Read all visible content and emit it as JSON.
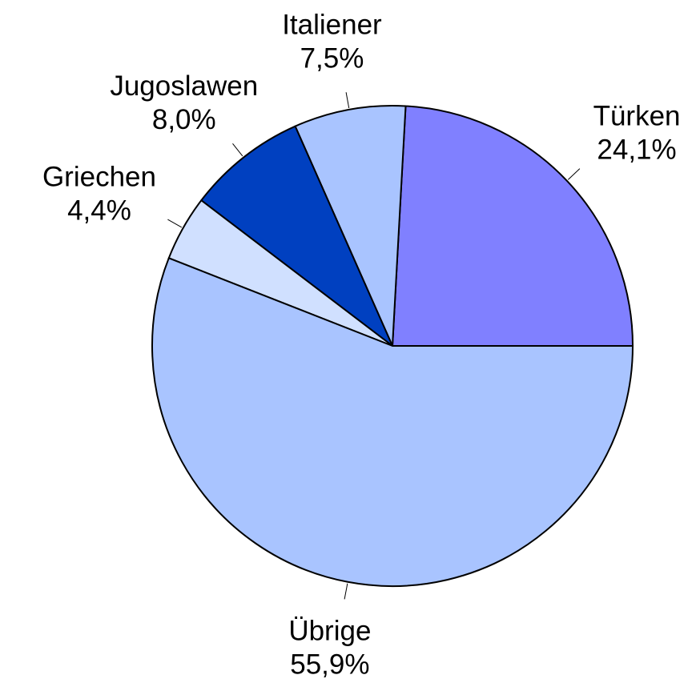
{
  "chart_data": {
    "type": "pie",
    "categories": [
      "Türken",
      "Italiener",
      "Jugoslawen",
      "Griechen",
      "Übrige"
    ],
    "values": [
      24.1,
      7.5,
      8.0,
      4.4,
      55.9
    ],
    "value_labels": [
      "24,1%",
      "7,5%",
      "8,0%",
      "4,4%",
      "55,9%"
    ],
    "colors": [
      "#8080ff",
      "#a9c4ff",
      "#0040c0",
      "#d0e0ff",
      "#a9c4ff"
    ]
  }
}
